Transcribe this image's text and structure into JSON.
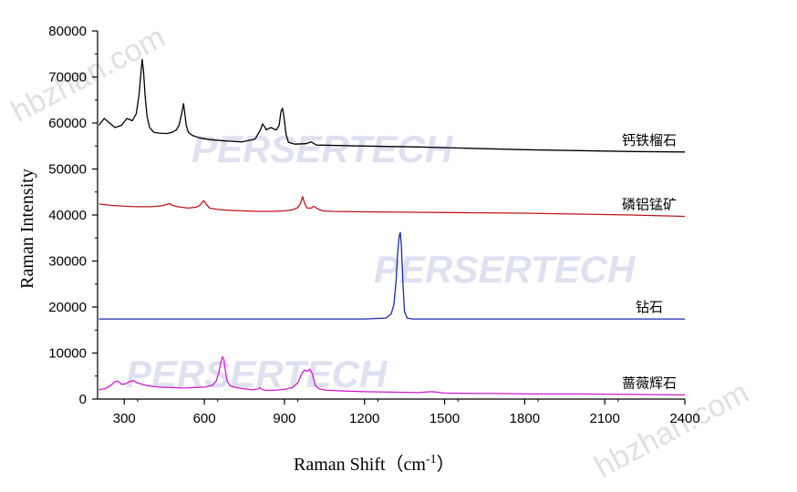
{
  "watermarks": {
    "brand": "PERSERTECH",
    "site": "hbzhan.com"
  },
  "chart_data": {
    "type": "line",
    "xlabel": "Raman Shift（cm",
    "xlabel_sup": "-1",
    "xlabel_close": "）",
    "ylabel": "Raman Intensity",
    "xlim": [
      200,
      2400
    ],
    "ylim": [
      0,
      80000
    ],
    "xticks": [
      300,
      600,
      900,
      1200,
      1500,
      1800,
      2100,
      2400
    ],
    "yticks": [
      0,
      10000,
      20000,
      30000,
      40000,
      50000,
      60000,
      70000,
      80000
    ],
    "grid": false,
    "legend_position": "inline labels at right end of each spectrum",
    "series": [
      {
        "name": "钙铁榴石",
        "color": "#000000",
        "x": [
          205,
          225,
          245,
          265,
          290,
          310,
          330,
          345,
          355,
          362,
          367,
          372,
          378,
          385,
          395,
          410,
          430,
          460,
          480,
          495,
          505,
          515,
          522,
          527,
          532,
          540,
          555,
          580,
          620,
          680,
          740,
          790,
          810,
          818,
          825,
          832,
          840,
          850,
          860,
          870,
          880,
          887,
          893,
          899,
          906,
          915,
          940,
          980,
          1000,
          1020,
          1100,
          1200,
          1400,
          1600,
          1800,
          2000,
          2200,
          2400
        ],
        "y": [
          59500,
          61000,
          60000,
          59000,
          59500,
          61000,
          60500,
          62000,
          66000,
          70500,
          73800,
          71500,
          66000,
          61500,
          59000,
          58000,
          57800,
          57700,
          58000,
          58500,
          59500,
          62000,
          64200,
          62000,
          59500,
          58000,
          57300,
          56800,
          56400,
          56100,
          55900,
          56500,
          58500,
          59800,
          59200,
          58500,
          58800,
          59000,
          58700,
          58500,
          59500,
          62500,
          63200,
          61000,
          57500,
          55800,
          55400,
          55500,
          55900,
          55200,
          55100,
          55000,
          54800,
          54500,
          54200,
          54000,
          53800,
          53700
        ]
      },
      {
        "name": "磷铝锰矿",
        "color": "#c0141c",
        "x": [
          205,
          250,
          300,
          350,
          400,
          440,
          460,
          470,
          480,
          500,
          540,
          570,
          585,
          592,
          598,
          605,
          620,
          650,
          700,
          750,
          800,
          850,
          900,
          930,
          950,
          960,
          968,
          976,
          985,
          1000,
          1010,
          1025,
          1045,
          1080,
          1200,
          1400,
          1600,
          1800,
          2000,
          2200,
          2400
        ],
        "y": [
          42400,
          42100,
          41900,
          41800,
          41800,
          42000,
          42300,
          42500,
          42100,
          41800,
          41500,
          41700,
          42200,
          42800,
          43100,
          42500,
          41500,
          41200,
          41000,
          40900,
          40800,
          40800,
          40900,
          41100,
          41600,
          42500,
          44000,
          42500,
          41500,
          41500,
          41900,
          41300,
          40900,
          40800,
          40700,
          40600,
          40500,
          40400,
          40200,
          40000,
          39700
        ]
      },
      {
        "name": "钻石",
        "color": "#1a2aa8",
        "x": [
          205,
          600,
          1000,
          1200,
          1280,
          1300,
          1310,
          1318,
          1324,
          1330,
          1334,
          1338,
          1344,
          1350,
          1360,
          1380,
          1500,
          1800,
          2100,
          2400
        ],
        "y": [
          17400,
          17400,
          17400,
          17400,
          17600,
          18500,
          20500,
          25500,
          31500,
          35500,
          36200,
          33500,
          25000,
          19000,
          17600,
          17400,
          17400,
          17400,
          17400,
          17400
        ]
      },
      {
        "name": "蔷薇辉石",
        "color": "#d21ad2",
        "x": [
          205,
          230,
          250,
          265,
          275,
          290,
          305,
          320,
          335,
          345,
          360,
          380,
          400,
          430,
          470,
          520,
          560,
          600,
          630,
          645,
          655,
          662,
          668,
          673,
          678,
          685,
          695,
          710,
          740,
          780,
          800,
          808,
          815,
          830,
          860,
          900,
          930,
          950,
          965,
          975,
          985,
          995,
          1005,
          1015,
          1030,
          1060,
          1100,
          1200,
          1300,
          1400,
          1450,
          1470,
          1500,
          1600,
          1700,
          1800,
          2000,
          2200,
          2400
        ],
        "y": [
          2000,
          2300,
          3000,
          3800,
          3900,
          3200,
          3300,
          3800,
          4000,
          3600,
          3300,
          3000,
          2800,
          2600,
          2500,
          2400,
          2500,
          2600,
          3000,
          4000,
          6000,
          8000,
          9200,
          8600,
          6500,
          4000,
          3000,
          2600,
          2300,
          2000,
          2200,
          2500,
          2100,
          1900,
          1900,
          2100,
          2500,
          3500,
          5500,
          6300,
          6000,
          6500,
          5500,
          3000,
          2200,
          1900,
          1800,
          1600,
          1500,
          1400,
          1600,
          1500,
          1300,
          1200,
          1200,
          1100,
          1100,
          1000,
          900
        ]
      }
    ]
  }
}
